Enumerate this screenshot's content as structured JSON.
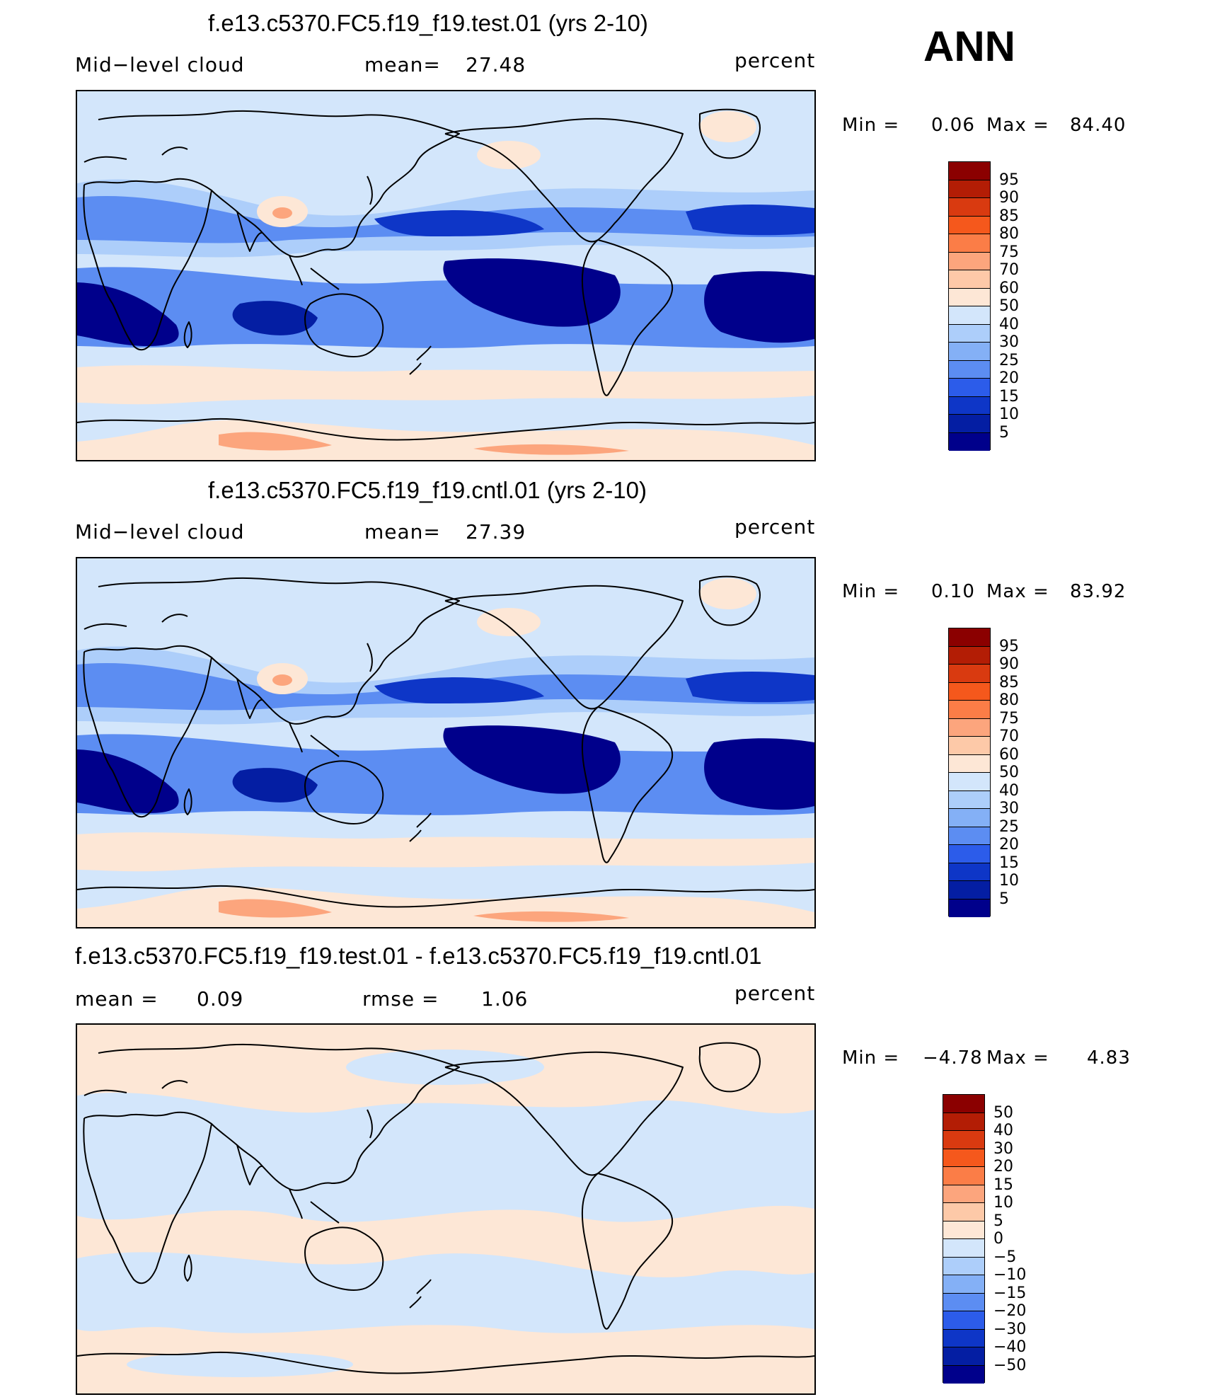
{
  "corner_label": "ANN",
  "chart_data": [
    {
      "type": "heatmap",
      "title": "f.e13.c5370.FC5.f19_f19.test.01 (yrs 2-10)",
      "left_label": "Mid−level cloud",
      "mean_label": "mean=",
      "mean_value": "27.48",
      "units": "percent",
      "min_label": "Min =",
      "min_value": "0.06",
      "max_label": "Max =",
      "max_value": "84.40",
      "colorbar_levels": [
        "95",
        "90",
        "85",
        "80",
        "75",
        "70",
        "60",
        "50",
        "40",
        "30",
        "25",
        "20",
        "15",
        "10",
        "5"
      ],
      "colorbar_colors": [
        "#8b0000",
        "#b31d05",
        "#d93a10",
        "#f5581c",
        "#fb7d47",
        "#fca57d",
        "#fdc9a8",
        "#fde7d6",
        "#d3e6fb",
        "#adcefa",
        "#84b0f6",
        "#5c8df2",
        "#2c5cea",
        "#0e36c7",
        "#041ea3",
        "#00008b"
      ],
      "fields": "annual mean mid-level cloud fraction, test run"
    },
    {
      "type": "heatmap",
      "title": "f.e13.c5370.FC5.f19_f19.cntl.01 (yrs 2-10)",
      "left_label": "Mid−level cloud",
      "mean_label": "mean=",
      "mean_value": "27.39",
      "units": "percent",
      "min_label": "Min =",
      "min_value": "0.10",
      "max_label": "Max =",
      "max_value": "83.92",
      "colorbar_levels": [
        "95",
        "90",
        "85",
        "80",
        "75",
        "70",
        "60",
        "50",
        "40",
        "30",
        "25",
        "20",
        "15",
        "10",
        "5"
      ],
      "colorbar_colors": [
        "#8b0000",
        "#b31d05",
        "#d93a10",
        "#f5581c",
        "#fb7d47",
        "#fca57d",
        "#fdc9a8",
        "#fde7d6",
        "#d3e6fb",
        "#adcefa",
        "#84b0f6",
        "#5c8df2",
        "#2c5cea",
        "#0e36c7",
        "#041ea3",
        "#00008b"
      ],
      "fields": "annual mean mid-level cloud fraction, control run"
    },
    {
      "type": "heatmap",
      "title": "f.e13.c5370.FC5.f19_f19.test.01 - f.e13.c5370.FC5.f19_f19.cntl.01",
      "left_label": "mean =",
      "mean_label": "",
      "mean_value": "0.09",
      "rmse_label": "rmse =",
      "rmse_value": "1.06",
      "units": "percent",
      "min_label": "Min =",
      "min_value": "−4.78",
      "max_label": "Max =",
      "max_value": "4.83",
      "colorbar_levels": [
        "50",
        "40",
        "30",
        "20",
        "15",
        "10",
        "5",
        "0",
        "−5",
        "−10",
        "−15",
        "−20",
        "−30",
        "−40",
        "−50"
      ],
      "colorbar_colors": [
        "#8b0000",
        "#b31d05",
        "#d93a10",
        "#f5581c",
        "#fb7d47",
        "#fca57d",
        "#fdc9a8",
        "#fde7d6",
        "#d3e6fb",
        "#adcefa",
        "#84b0f6",
        "#5c8df2",
        "#2c5cea",
        "#0e36c7",
        "#041ea3",
        "#00008b"
      ],
      "fields": "difference test minus control"
    }
  ]
}
